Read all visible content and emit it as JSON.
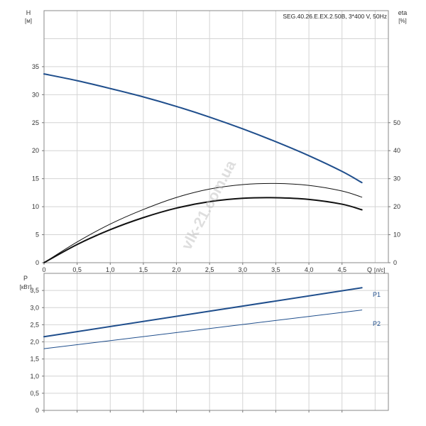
{
  "model_label": "SEG.40.26.E.EX.2.50B, 3*400 V, 50Hz",
  "watermark": "vlk-21.com.ua",
  "chart_data": [
    {
      "type": "line",
      "x_label": "Q",
      "x_unit": "[л/с]",
      "xlim": [
        0,
        5.2
      ],
      "x_ticks": [
        {
          "v": 0,
          "t": "0"
        },
        {
          "v": 0.5,
          "t": "0,5"
        },
        {
          "v": 1.0,
          "t": "1,0"
        },
        {
          "v": 1.5,
          "t": "1,5"
        },
        {
          "v": 2.0,
          "t": "2,0"
        },
        {
          "v": 2.5,
          "t": "2,5"
        },
        {
          "v": 3.0,
          "t": "3,0"
        },
        {
          "v": 3.5,
          "t": "3,5"
        },
        {
          "v": 4.0,
          "t": "4,0"
        },
        {
          "v": 4.5,
          "t": "4,5"
        }
      ],
      "y_left_label": "H",
      "y_left_unit": "[м]",
      "y_left_lim": [
        0,
        45
      ],
      "y_left_ticks": [
        {
          "v": 0,
          "t": "0"
        },
        {
          "v": 5,
          "t": "5"
        },
        {
          "v": 10,
          "t": "10"
        },
        {
          "v": 15,
          "t": "15"
        },
        {
          "v": 20,
          "t": "20"
        },
        {
          "v": 25,
          "t": "25"
        },
        {
          "v": 30,
          "t": "30"
        },
        {
          "v": 35,
          "t": "35"
        }
      ],
      "y_right_label": "eta",
      "y_right_unit": "[%]",
      "y_right_lim": [
        0,
        90
      ],
      "y_right_ticks": [
        {
          "v": 0,
          "t": "0"
        },
        {
          "v": 10,
          "t": "10"
        },
        {
          "v": 20,
          "t": "20"
        },
        {
          "v": 30,
          "t": "30"
        },
        {
          "v": 40,
          "t": "40"
        },
        {
          "v": 50,
          "t": "50"
        }
      ],
      "grid": true,
      "series": [
        {
          "axis": "left",
          "color": "#1f4e8c",
          "width": 2,
          "x": [
            0,
            0.5,
            1.0,
            1.5,
            2.0,
            2.5,
            3.0,
            3.5,
            4.0,
            4.5,
            4.8
          ],
          "y": [
            33.7,
            32.5,
            31.1,
            29.6,
            27.9,
            26.0,
            23.9,
            21.6,
            19.1,
            16.3,
            14.3
          ]
        },
        {
          "axis": "right",
          "color": "#111111",
          "width": 1,
          "x": [
            0,
            0.5,
            1.0,
            1.5,
            2.0,
            2.5,
            3.0,
            3.5,
            4.0,
            4.5,
            4.8
          ],
          "y": [
            0,
            7.4,
            13.8,
            19.0,
            23.3,
            26.3,
            27.9,
            28.3,
            27.6,
            25.6,
            23.4
          ]
        },
        {
          "axis": "right",
          "color": "#111111",
          "width": 2,
          "x": [
            0,
            0.5,
            1.0,
            1.5,
            2.0,
            2.5,
            3.0,
            3.5,
            4.0,
            4.5,
            4.8
          ],
          "y": [
            0,
            6.5,
            11.8,
            16.1,
            19.5,
            21.8,
            23.0,
            23.2,
            22.6,
            20.9,
            18.9
          ]
        }
      ]
    },
    {
      "type": "line",
      "y_label": "P",
      "y_unit": "[кВт]",
      "xlim": [
        0,
        5.2
      ],
      "ylim": [
        0,
        4.0
      ],
      "y_ticks": [
        {
          "v": 0,
          "t": "0"
        },
        {
          "v": 0.5,
          "t": "0,5"
        },
        {
          "v": 1.0,
          "t": "1,0"
        },
        {
          "v": 1.5,
          "t": "1,5"
        },
        {
          "v": 2.0,
          "t": "2,0"
        },
        {
          "v": 2.5,
          "t": "2,5"
        },
        {
          "v": 3.0,
          "t": "3,0"
        },
        {
          "v": 3.5,
          "t": "3,5"
        }
      ],
      "grid": true,
      "series": [
        {
          "name": "P1",
          "color": "#1f4e8c",
          "width": 2,
          "x": [
            0,
            4.8
          ],
          "y": [
            2.15,
            3.58
          ]
        },
        {
          "name": "P2",
          "color": "#1f4e8c",
          "width": 1,
          "x": [
            0,
            4.8
          ],
          "y": [
            1.8,
            2.93
          ]
        }
      ]
    }
  ]
}
